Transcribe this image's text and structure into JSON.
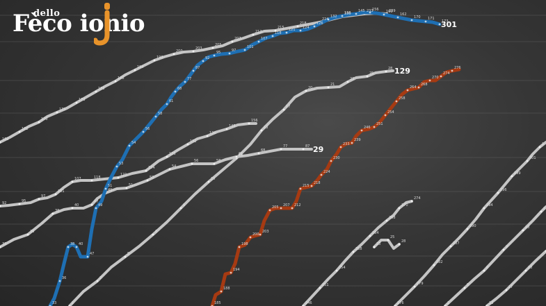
{
  "chart_data": {
    "type": "line",
    "title": "",
    "xlabel": "",
    "ylabel": "",
    "grid": true,
    "legend": "none",
    "series": [
      {
        "color": "#1e6fb3",
        "end_label": "301",
        "points": [
          [
            72,
            441
          ],
          [
            78,
            430
          ],
          [
            86,
            405
          ],
          [
            92,
            380
          ],
          [
            98,
            356
          ],
          [
            104,
            352
          ],
          [
            110,
            356
          ],
          [
            116,
            370
          ],
          [
            126,
            370
          ],
          [
            132,
            330
          ],
          [
            138,
            300
          ],
          [
            146,
            290
          ],
          [
            152,
            272
          ],
          [
            160,
            255
          ],
          [
            168,
            240
          ],
          [
            176,
            230
          ],
          [
            186,
            210
          ],
          [
            196,
            200
          ],
          [
            206,
            190
          ],
          [
            216,
            178
          ],
          [
            224,
            168
          ],
          [
            232,
            158
          ],
          [
            240,
            150
          ],
          [
            246,
            140
          ],
          [
            252,
            132
          ],
          [
            258,
            125
          ],
          [
            266,
            118
          ],
          [
            272,
            110
          ],
          [
            278,
            102
          ],
          [
            284,
            94
          ],
          [
            292,
            88
          ],
          [
            300,
            82
          ],
          [
            308,
            80
          ],
          [
            318,
            78
          ],
          [
            330,
            77
          ],
          [
            342,
            74
          ],
          [
            352,
            72
          ],
          [
            362,
            65
          ],
          [
            372,
            60
          ],
          [
            382,
            55
          ],
          [
            392,
            52
          ],
          [
            402,
            48
          ],
          [
            412,
            47
          ],
          [
            422,
            44
          ],
          [
            432,
            44
          ],
          [
            442,
            42
          ],
          [
            452,
            38
          ],
          [
            462,
            33
          ],
          [
            472,
            28
          ],
          [
            482,
            25
          ],
          [
            492,
            23
          ],
          [
            502,
            21
          ],
          [
            512,
            20
          ],
          [
            522,
            18
          ],
          [
            532,
            18
          ],
          [
            542,
            19
          ],
          [
            552,
            21
          ],
          [
            562,
            23
          ],
          [
            572,
            25
          ],
          [
            582,
            27
          ],
          [
            592,
            29
          ],
          [
            602,
            30
          ],
          [
            612,
            31
          ],
          [
            622,
            32
          ],
          [
            632,
            35
          ]
        ]
      },
      {
        "color": "#a63a12",
        "end_label": "",
        "points": [
          [
            305,
            441
          ],
          [
            310,
            425
          ],
          [
            318,
            420
          ],
          [
            324,
            395
          ],
          [
            332,
            393
          ],
          [
            338,
            380
          ],
          [
            344,
            356
          ],
          [
            352,
            353
          ],
          [
            360,
            342
          ],
          [
            366,
            340
          ],
          [
            374,
            338
          ],
          [
            380,
            318
          ],
          [
            388,
            303
          ],
          [
            396,
            300
          ],
          [
            404,
            300
          ],
          [
            412,
            300
          ],
          [
            420,
            300
          ],
          [
            426,
            290
          ],
          [
            432,
            272
          ],
          [
            440,
            270
          ],
          [
            448,
            268
          ],
          [
            456,
            260
          ],
          [
            462,
            252
          ],
          [
            470,
            244
          ],
          [
            476,
            232
          ],
          [
            484,
            222
          ],
          [
            490,
            212
          ],
          [
            498,
            207
          ],
          [
            506,
            206
          ],
          [
            512,
            196
          ],
          [
            520,
            188
          ],
          [
            530,
            186
          ],
          [
            538,
            183
          ],
          [
            546,
            176
          ],
          [
            554,
            166
          ],
          [
            562,
            156
          ],
          [
            570,
            146
          ],
          [
            578,
            136
          ],
          [
            586,
            130
          ],
          [
            594,
            128
          ],
          [
            602,
            126
          ],
          [
            610,
            118
          ],
          [
            618,
            116
          ],
          [
            626,
            116
          ],
          [
            634,
            110
          ],
          [
            642,
            104
          ],
          [
            650,
            102
          ],
          [
            660,
            100
          ]
        ]
      },
      {
        "color": "#c4c4c4",
        "end_label": "129",
        "points": [
          [
            100,
            441
          ],
          [
            120,
            420
          ],
          [
            140,
            405
          ],
          [
            160,
            385
          ],
          [
            180,
            370
          ],
          [
            200,
            355
          ],
          [
            220,
            338
          ],
          [
            240,
            320
          ],
          [
            260,
            300
          ],
          [
            280,
            280
          ],
          [
            300,
            262
          ],
          [
            320,
            245
          ],
          [
            340,
            228
          ],
          [
            360,
            208
          ],
          [
            376,
            188
          ],
          [
            392,
            172
          ],
          [
            408,
            158
          ],
          [
            424,
            140
          ],
          [
            440,
            131
          ],
          [
            456,
            127
          ],
          [
            472,
            126
          ],
          [
            488,
            125
          ],
          [
            500,
            118
          ],
          [
            512,
            112
          ],
          [
            528,
            110
          ],
          [
            540,
            105
          ],
          [
            555,
            103
          ],
          [
            565,
            102
          ]
        ]
      },
      {
        "color": "#c4c4c4",
        "end_label": "29",
        "points": [
          [
            0,
            356
          ],
          [
            20,
            345
          ],
          [
            40,
            338
          ],
          [
            60,
            322
          ],
          [
            76,
            308
          ],
          [
            92,
            302
          ],
          [
            104,
            300
          ],
          [
            120,
            300
          ],
          [
            132,
            295
          ],
          [
            140,
            286
          ],
          [
            152,
            278
          ],
          [
            168,
            272
          ],
          [
            182,
            271
          ],
          [
            196,
            266
          ],
          [
            212,
            260
          ],
          [
            228,
            252
          ],
          [
            244,
            244
          ],
          [
            260,
            240
          ],
          [
            276,
            236
          ],
          [
            292,
            236
          ],
          [
            308,
            236
          ],
          [
            324,
            230
          ],
          [
            340,
            226
          ],
          [
            356,
            224
          ],
          [
            372,
            221
          ],
          [
            388,
            218
          ],
          [
            404,
            215
          ],
          [
            420,
            215
          ],
          [
            436,
            215
          ],
          [
            448,
            215
          ]
        ]
      },
      {
        "color": "#c4c4c4",
        "end_label": "",
        "points": [
          [
            0,
            297
          ],
          [
            12,
            296
          ],
          [
            28,
            294
          ],
          [
            44,
            292
          ],
          [
            56,
            287
          ],
          [
            68,
            285
          ],
          [
            80,
            280
          ],
          [
            92,
            270
          ],
          [
            104,
            262
          ],
          [
            116,
            260
          ],
          [
            132,
            260
          ],
          [
            150,
            258
          ],
          [
            170,
            256
          ],
          [
            190,
            250
          ],
          [
            210,
            246
          ],
          [
            228,
            232
          ],
          [
            240,
            226
          ],
          [
            256,
            216
          ],
          [
            270,
            208
          ],
          [
            284,
            200
          ],
          [
            298,
            196
          ],
          [
            312,
            190
          ],
          [
            326,
            186
          ],
          [
            342,
            180
          ],
          [
            358,
            178
          ],
          [
            368,
            178
          ]
        ]
      },
      {
        "color": "#c4c4c4",
        "end_label": "",
        "points": [
          [
            0,
            205
          ],
          [
            14,
            198
          ],
          [
            28,
            190
          ],
          [
            42,
            182
          ],
          [
            56,
            176
          ],
          [
            68,
            168
          ],
          [
            82,
            162
          ],
          [
            96,
            156
          ],
          [
            110,
            148
          ],
          [
            124,
            140
          ],
          [
            138,
            132
          ],
          [
            152,
            124
          ],
          [
            166,
            117
          ],
          [
            180,
            108
          ],
          [
            194,
            101
          ],
          [
            208,
            94
          ],
          [
            222,
            87
          ],
          [
            236,
            82
          ],
          [
            250,
            78
          ],
          [
            264,
            75
          ],
          [
            278,
            74
          ],
          [
            292,
            72
          ],
          [
            306,
            69
          ],
          [
            320,
            66
          ],
          [
            334,
            60
          ],
          [
            350,
            55
          ],
          [
            364,
            50
          ],
          [
            380,
            45
          ],
          [
            396,
            44
          ],
          [
            412,
            41
          ],
          [
            428,
            38
          ],
          [
            444,
            35
          ],
          [
            460,
            32
          ],
          [
            476,
            28
          ],
          [
            492,
            24
          ],
          [
            508,
            22
          ],
          [
            524,
            20
          ],
          [
            540,
            19
          ],
          [
            556,
            20
          ]
        ]
      },
      {
        "color": "#c4c4c4",
        "end_label": "",
        "points": [
          [
            436,
            441
          ],
          [
            448,
            428
          ],
          [
            460,
            415
          ],
          [
            472,
            402
          ],
          [
            484,
            390
          ],
          [
            496,
            376
          ],
          [
            508,
            363
          ],
          [
            520,
            352
          ],
          [
            532,
            340
          ],
          [
            544,
            328
          ],
          [
            556,
            318
          ],
          [
            566,
            310
          ],
          [
            574,
            300
          ],
          [
            584,
            292
          ],
          [
            592,
            290
          ]
        ]
      },
      {
        "color": "#c4c4c4",
        "end_label": "",
        "points": [
          [
            568,
            441
          ],
          [
            582,
            427
          ],
          [
            596,
            413
          ],
          [
            610,
            398
          ],
          [
            624,
            382
          ],
          [
            636,
            367
          ],
          [
            648,
            355
          ],
          [
            660,
            343
          ],
          [
            672,
            330
          ],
          [
            684,
            316
          ],
          [
            696,
            300
          ],
          [
            706,
            289
          ],
          [
            716,
            278
          ],
          [
            726,
            266
          ],
          [
            736,
            254
          ],
          [
            748,
            242
          ],
          [
            758,
            232
          ],
          [
            766,
            222
          ],
          [
            776,
            212
          ],
          [
            785,
            205
          ]
        ]
      },
      {
        "color": "#c4c4c4",
        "end_label": "",
        "points": [
          [
            640,
            441
          ],
          [
            654,
            428
          ],
          [
            668,
            415
          ],
          [
            682,
            402
          ],
          [
            696,
            390
          ],
          [
            710,
            375
          ],
          [
            724,
            360
          ],
          [
            738,
            346
          ],
          [
            752,
            332
          ],
          [
            766,
            318
          ],
          [
            778,
            305
          ],
          [
            785,
            298
          ]
        ]
      },
      {
        "color": "#c4c4c4",
        "end_label": "",
        "points": [
          [
            700,
            441
          ],
          [
            714,
            430
          ],
          [
            728,
            418
          ],
          [
            742,
            404
          ],
          [
            756,
            390
          ],
          [
            770,
            376
          ],
          [
            785,
            362
          ]
        ]
      },
      {
        "color": "#c4c4c4",
        "end_label": "",
        "points": [
          [
            538,
            356
          ],
          [
            548,
            346
          ],
          [
            558,
            346
          ],
          [
            566,
            358
          ],
          [
            574,
            352
          ]
        ]
      }
    ]
  },
  "labels": {
    "values": [
      "1",
      "2",
      "5",
      "6",
      "9",
      "10",
      "11",
      "13",
      "17",
      "20",
      "21",
      "23",
      "25",
      "28",
      "33",
      "36",
      "38",
      "40",
      "47",
      "49",
      "51",
      "53",
      "54",
      "56",
      "58",
      "61",
      "68",
      "77",
      "87",
      "92",
      "95",
      "97",
      "101",
      "107",
      "118",
      "121",
      "124",
      "126",
      "132",
      "136",
      "145",
      "156",
      "160",
      "162",
      "170",
      "171",
      "173",
      "185",
      "188",
      "194",
      "198",
      "200",
      "203",
      "205",
      "207",
      "212",
      "215",
      "218",
      "224",
      "230",
      "233",
      "239",
      "246",
      "251",
      "254",
      "258",
      "264",
      "268",
      "270",
      "274",
      "276",
      "279",
      "282",
      "287",
      "290",
      "294",
      "296",
      "299",
      "301"
    ]
  },
  "logo": {
    "small": "dello",
    "main": "Fèco  ionio",
    "letter": "j",
    "accent": "#e8932a"
  }
}
